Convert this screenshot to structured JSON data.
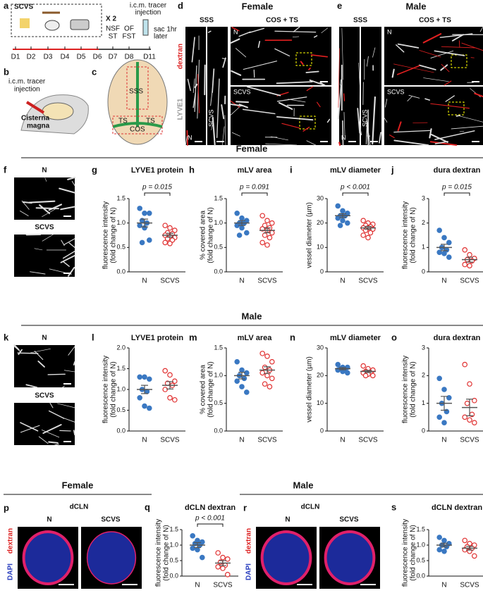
{
  "panel_a": {
    "label": "a",
    "title": "SCVS",
    "repeat": "X 2",
    "days": [
      "D1",
      "D2",
      "D3",
      "D4",
      "D5",
      "D6",
      "D7",
      "D8",
      "D11"
    ],
    "tests": [
      [
        "NSF",
        "ST"
      ],
      [
        "OF",
        "FST"
      ]
    ],
    "injection": [
      "i.c.m. tracer",
      "injection"
    ],
    "sac": [
      "sac 1hr",
      "later"
    ]
  },
  "panel_b": {
    "label": "b",
    "injection": [
      "i.c.m. tracer",
      "injection"
    ],
    "site": [
      "Cisterna",
      "magna"
    ]
  },
  "panel_c": {
    "label": "c",
    "regions": [
      "SSS",
      "TS",
      "TS",
      "COS"
    ]
  },
  "panel_d": {
    "label": "d",
    "sex": "Female",
    "columns": [
      "SSS",
      "COS + TS"
    ],
    "rows": [
      "N",
      "SCVS"
    ],
    "strip": [
      "N",
      "SCVS"
    ],
    "stain": [
      "dextran",
      "LYVE1"
    ]
  },
  "panel_e": {
    "label": "e",
    "sex": "Male",
    "columns": [
      "SSS",
      "COS + TS"
    ],
    "rows": [
      "N",
      "SCVS"
    ],
    "strip": [
      "N",
      "SCVS"
    ]
  },
  "sections": [
    "Female",
    "Male",
    "Female",
    "Male"
  ],
  "panel_f": {
    "label": "f",
    "rows": [
      "N",
      "SCVS"
    ]
  },
  "panel_k": {
    "label": "k",
    "rows": [
      "N",
      "SCVS"
    ]
  },
  "panel_p": {
    "label": "p",
    "title": "dCLN",
    "columns": [
      "N",
      "SCVS"
    ],
    "stain": [
      "dextran",
      "DAPI"
    ]
  },
  "panel_r": {
    "label": "r",
    "title": "dCLN",
    "columns": [
      "N",
      "SCVS"
    ],
    "stain": [
      "dextran",
      "DAPI"
    ]
  },
  "chart_data": [
    {
      "type": "strip",
      "panel": "g",
      "title": "LYVE1 protein",
      "ylabel": [
        "fluorescence intensity",
        "(fold change of N)"
      ],
      "annotation": "p = 0.015",
      "categories": [
        "N",
        "SCVS"
      ],
      "series": [
        {
          "color": "#3a78c2",
          "open": false,
          "values": [
            1.3,
            1.2,
            1.2,
            1.05,
            1.0,
            0.95,
            0.9,
            0.65,
            0.6
          ],
          "mean": 1.0,
          "sem": 0.08
        },
        {
          "color": "#e03030",
          "open": true,
          "values": [
            0.95,
            0.9,
            0.85,
            0.8,
            0.78,
            0.75,
            0.72,
            0.7,
            0.68,
            0.65,
            0.6,
            0.58
          ],
          "mean": 0.75,
          "sem": 0.04
        }
      ],
      "ylim": [
        0,
        1.5
      ],
      "yticks": [
        {
          "value": 0,
          "label": "0.0"
        },
        0.5,
        {
          "value": 1,
          "label": "1.0"
        },
        1.5
      ]
    },
    {
      "type": "strip",
      "panel": "h",
      "title": "mLV area",
      "ylabel": [
        "% covered area",
        "(fold change of N)"
      ],
      "annotation": "p = 0.091",
      "categories": [
        "N",
        "SCVS"
      ],
      "series": [
        {
          "color": "#3a78c2",
          "open": false,
          "values": [
            1.2,
            1.1,
            1.05,
            1.0,
            1.0,
            0.95,
            0.9,
            0.8,
            0.75
          ],
          "mean": 1.0,
          "sem": 0.05
        },
        {
          "color": "#e03030",
          "open": true,
          "values": [
            1.15,
            1.05,
            1.0,
            0.95,
            0.9,
            0.88,
            0.85,
            0.8,
            0.75,
            0.7,
            0.6,
            0.55
          ],
          "mean": 0.85,
          "sem": 0.05
        }
      ],
      "ylim": [
        0,
        1.5
      ],
      "yticks": [
        {
          "value": 0,
          "label": "0.0"
        },
        0.5,
        {
          "value": 1,
          "label": "1.0"
        },
        1.5
      ]
    },
    {
      "type": "strip",
      "panel": "i",
      "title": "mLV diameter",
      "ylabel": [
        "vessel diameter (µm)"
      ],
      "annotation": "p < 0.001",
      "categories": [
        "N",
        "SCVS"
      ],
      "series": [
        {
          "color": "#3a78c2",
          "open": false,
          "values": [
            27,
            25,
            24,
            23,
            23,
            22,
            21,
            20,
            19
          ],
          "mean": 23,
          "sem": 0.8
        },
        {
          "color": "#e03030",
          "open": true,
          "values": [
            21,
            20,
            19.5,
            19,
            18.5,
            18,
            18,
            17.5,
            17,
            16,
            15,
            14
          ],
          "mean": 18,
          "sem": 0.6
        }
      ],
      "ylim": [
        0,
        30
      ],
      "yticks": [
        0,
        10,
        20,
        30
      ]
    },
    {
      "type": "strip",
      "panel": "j",
      "title": "dura dextran",
      "ylabel": [
        "fluorescence intensity",
        "(fold change of N)"
      ],
      "annotation": "p = 0.015",
      "categories": [
        "N",
        "SCVS"
      ],
      "series": [
        {
          "color": "#3a78c2",
          "open": false,
          "values": [
            1.7,
            1.4,
            1.2,
            1.0,
            0.9,
            0.8,
            0.75,
            0.6
          ],
          "mean": 1.0,
          "sem": 0.13
        },
        {
          "color": "#e03030",
          "open": true,
          "values": [
            0.9,
            0.7,
            0.55,
            0.5,
            0.45,
            0.3,
            0.25
          ],
          "mean": 0.5,
          "sem": 0.1
        }
      ],
      "ylim": [
        0,
        3
      ],
      "yticks": [
        0,
        1,
        2,
        3
      ]
    },
    {
      "type": "strip",
      "panel": "l",
      "title": "LYVE1 protein",
      "ylabel": [
        "fluorescence intensity",
        "(fold change of N)"
      ],
      "categories": [
        "N",
        "SCVS"
      ],
      "series": [
        {
          "color": "#3a78c2",
          "open": false,
          "values": [
            1.3,
            1.3,
            1.25,
            1.0,
            0.95,
            0.8,
            0.6,
            0.55
          ],
          "mean": 1.0,
          "sem": 0.1
        },
        {
          "color": "#e03030",
          "open": true,
          "values": [
            1.45,
            1.35,
            1.2,
            1.15,
            1.1,
            1.0,
            0.8,
            0.75
          ],
          "mean": 1.1,
          "sem": 0.09
        }
      ],
      "ylim": [
        0,
        2
      ],
      "yticks": [
        {
          "value": 0,
          "label": "0.0"
        },
        0.5,
        {
          "value": 1,
          "label": "1.0"
        },
        1.5,
        {
          "value": 2,
          "label": "2.0"
        }
      ]
    },
    {
      "type": "strip",
      "panel": "m",
      "title": "mLV area",
      "ylabel": [
        "% covered area",
        "(fold change of N)"
      ],
      "categories": [
        "N",
        "SCVS"
      ],
      "series": [
        {
          "color": "#3a78c2",
          "open": false,
          "values": [
            1.25,
            1.1,
            1.05,
            1.0,
            0.95,
            0.9,
            0.8,
            0.7
          ],
          "mean": 1.0,
          "sem": 0.06
        },
        {
          "color": "#e03030",
          "open": true,
          "values": [
            1.4,
            1.35,
            1.25,
            1.15,
            1.1,
            1.05,
            1.0,
            0.95,
            0.85,
            0.8
          ],
          "mean": 1.1,
          "sem": 0.06
        }
      ],
      "ylim": [
        0,
        1.5
      ],
      "yticks": [
        {
          "value": 0,
          "label": "0.0"
        },
        0.5,
        {
          "value": 1,
          "label": "1.0"
        },
        1.5
      ]
    },
    {
      "type": "strip",
      "panel": "n",
      "title": "mLV diameter",
      "ylabel": [
        "vessel diameter (µm)"
      ],
      "categories": [
        "N",
        "SCVS"
      ],
      "series": [
        {
          "color": "#3a78c2",
          "open": false,
          "values": [
            24,
            23,
            23,
            22.5,
            22,
            22,
            21.5,
            21
          ],
          "mean": 22.5,
          "sem": 0.4
        },
        {
          "color": "#e03030",
          "open": true,
          "values": [
            23.5,
            22.5,
            22,
            21.5,
            21,
            21,
            20.5,
            20,
            20
          ],
          "mean": 21.5,
          "sem": 0.4
        }
      ],
      "ylim": [
        0,
        30
      ],
      "yticks": [
        0,
        10,
        20,
        30
      ]
    },
    {
      "type": "strip",
      "panel": "o",
      "title": "dura dextran",
      "ylabel": [
        "fluorescence intensity",
        "(fold change of N)"
      ],
      "categories": [
        "N",
        "SCVS"
      ],
      "series": [
        {
          "color": "#3a78c2",
          "open": false,
          "values": [
            1.9,
            1.5,
            1.2,
            1.0,
            0.7,
            0.5,
            0.3
          ],
          "mean": 1.0,
          "sem": 0.25
        },
        {
          "color": "#e03030",
          "open": true,
          "values": [
            2.4,
            1.7,
            1.1,
            1.0,
            0.6,
            0.5,
            0.4,
            0.3
          ],
          "mean": 0.85,
          "sem": 0.3
        }
      ],
      "ylim": [
        0,
        3
      ],
      "yticks": [
        0,
        1,
        2,
        3
      ]
    },
    {
      "type": "strip",
      "panel": "q",
      "title": "dCLN dextran",
      "ylabel": [
        "fluorescence intensity",
        "(fold change of N)"
      ],
      "annotation": "p < 0.001",
      "categories": [
        "N",
        "SCVS"
      ],
      "series": [
        {
          "color": "#3a78c2",
          "open": false,
          "values": [
            1.3,
            1.15,
            1.1,
            1.05,
            1.0,
            0.9,
            0.85,
            0.6
          ],
          "mean": 1.0,
          "sem": 0.08
        },
        {
          "color": "#e03030",
          "open": true,
          "values": [
            0.75,
            0.6,
            0.55,
            0.45,
            0.35,
            0.3,
            0.25,
            0.05
          ],
          "mean": 0.42,
          "sem": 0.08
        }
      ],
      "ylim": [
        0,
        1.5
      ],
      "yticks": [
        {
          "value": 0,
          "label": "0.0"
        },
        0.5,
        {
          "value": 1,
          "label": "1.0"
        },
        1.5
      ]
    },
    {
      "type": "strip",
      "panel": "s",
      "title": "dCLN dextran",
      "ylabel": [
        "fluorescence intensity",
        "(fold change of N)"
      ],
      "categories": [
        "N",
        "SCVS"
      ],
      "series": [
        {
          "color": "#3a78c2",
          "open": false,
          "values": [
            1.25,
            1.15,
            1.05,
            1.0,
            0.95,
            0.85,
            0.8
          ],
          "mean": 1.0,
          "sem": 0.06
        },
        {
          "color": "#e03030",
          "open": true,
          "values": [
            1.15,
            1.05,
            1.0,
            0.95,
            0.9,
            0.85,
            0.8,
            0.65
          ],
          "mean": 0.9,
          "sem": 0.06
        }
      ],
      "ylim": [
        0,
        1.5
      ],
      "yticks": [
        {
          "value": 0,
          "label": "0.0"
        },
        0.5,
        {
          "value": 1,
          "label": "1.0"
        },
        1.5
      ]
    }
  ]
}
